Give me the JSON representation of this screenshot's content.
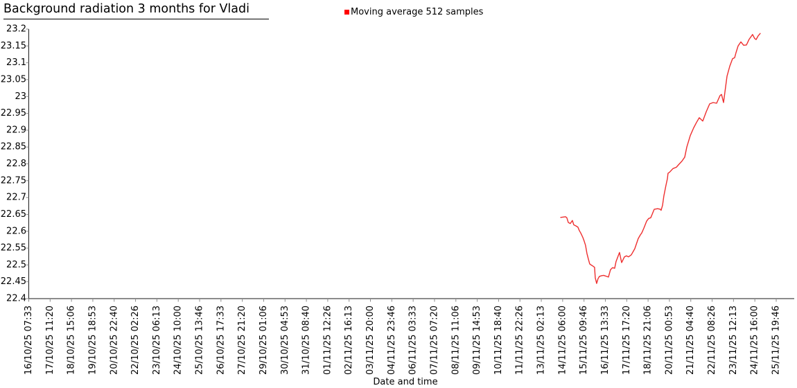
{
  "title": "Background radiation 3 months for Vladi",
  "legend": {
    "label": "Moving average 512 samples",
    "marker_color": "#ff0000"
  },
  "colors": {
    "background": "#ffffff",
    "axis_line": "#1a1a1a",
    "tick_mark": "#8a8a8a",
    "text": "#000000",
    "series_line": "#ee2e2e"
  },
  "chart_data": {
    "type": "line",
    "title": "Background radiation 3 months for Vladi",
    "xlabel": "Date and time",
    "ylabel": "",
    "ylim": [
      22.4,
      23.2
    ],
    "grid": false,
    "legend_position": "top-center",
    "yticks": [
      "22.4",
      "22.45",
      "22.5",
      "22.55",
      "22.6",
      "22.65",
      "22.7",
      "22.75",
      "22.8",
      "22.85",
      "22.9",
      "22.95",
      "23",
      "23.05",
      "23.1",
      "23.15",
      "23.2"
    ],
    "categories": [
      "16/10/25 07:33",
      "17/10/25 11:20",
      "18/10/25 15:06",
      "19/10/25 18:53",
      "20/10/25 22:40",
      "22/10/25 02:26",
      "23/10/25 06:13",
      "24/10/25 10:00",
      "25/10/25 13:46",
      "26/10/25 17:33",
      "27/10/25 21:20",
      "29/10/25 01:06",
      "30/10/25 04:53",
      "31/10/25 08:40",
      "01/11/25 12:26",
      "02/11/25 16:13",
      "03/11/25 20:00",
      "04/11/25 23:46",
      "06/11/25 03:33",
      "07/11/25 07:20",
      "08/11/25 11:06",
      "09/11/25 14:53",
      "10/11/25 18:40",
      "11/11/25 22:26",
      "13/11/25 02:13",
      "14/11/25 06:00",
      "15/11/25 09:46",
      "16/11/25 13:33",
      "17/11/25 17:20",
      "18/11/25 21:06",
      "20/11/25 00:53",
      "21/11/25 04:40",
      "22/11/25 08:26",
      "23/11/25 12:13",
      "24/11/25 16:00",
      "25/11/25 19:46"
    ],
    "x_range": {
      "start": "16/10/25 07:33",
      "end": "25/11/25 19:46"
    },
    "series": [
      {
        "name": "Moving average 512 samples",
        "color": "#ee2e2e",
        "point_format": "[fraction_along_x_axis, value]",
        "points": [
          [
            0.7116,
            22.641
          ],
          [
            0.7181,
            22.643
          ],
          [
            0.7199,
            22.64
          ],
          [
            0.7218,
            22.626
          ],
          [
            0.7245,
            22.623
          ],
          [
            0.7273,
            22.632
          ],
          [
            0.7292,
            22.619
          ],
          [
            0.7319,
            22.616
          ],
          [
            0.7347,
            22.612
          ],
          [
            0.7366,
            22.602
          ],
          [
            0.7384,
            22.595
          ],
          [
            0.7412,
            22.582
          ],
          [
            0.7431,
            22.571
          ],
          [
            0.7449,
            22.558
          ],
          [
            0.7468,
            22.534
          ],
          [
            0.7487,
            22.517
          ],
          [
            0.7505,
            22.503
          ],
          [
            0.7523,
            22.5
          ],
          [
            0.7551,
            22.496
          ],
          [
            0.757,
            22.493
          ],
          [
            0.7579,
            22.462
          ],
          [
            0.7598,
            22.445
          ],
          [
            0.7616,
            22.459
          ],
          [
            0.7635,
            22.466
          ],
          [
            0.7663,
            22.468
          ],
          [
            0.769,
            22.469
          ],
          [
            0.7718,
            22.467
          ],
          [
            0.7755,
            22.464
          ],
          [
            0.7783,
            22.486
          ],
          [
            0.7811,
            22.492
          ],
          [
            0.7839,
            22.49
          ],
          [
            0.7857,
            22.51
          ],
          [
            0.7904,
            22.537
          ],
          [
            0.7922,
            22.517
          ],
          [
            0.7932,
            22.507
          ],
          [
            0.7969,
            22.524
          ],
          [
            0.7996,
            22.527
          ],
          [
            0.8024,
            22.524
          ],
          [
            0.8061,
            22.53
          ],
          [
            0.8108,
            22.548
          ],
          [
            0.8154,
            22.578
          ],
          [
            0.8182,
            22.589
          ],
          [
            0.8201,
            22.595
          ],
          [
            0.8229,
            22.609
          ],
          [
            0.8266,
            22.63
          ],
          [
            0.8294,
            22.638
          ],
          [
            0.8321,
            22.64
          ],
          [
            0.834,
            22.65
          ],
          [
            0.8358,
            22.66
          ],
          [
            0.8368,
            22.665
          ],
          [
            0.8414,
            22.667
          ],
          [
            0.8451,
            22.665
          ],
          [
            0.846,
            22.662
          ],
          [
            0.8479,
            22.677
          ],
          [
            0.8497,
            22.705
          ],
          [
            0.8525,
            22.736
          ],
          [
            0.8544,
            22.756
          ],
          [
            0.8553,
            22.772
          ],
          [
            0.8572,
            22.775
          ],
          [
            0.8618,
            22.786
          ],
          [
            0.8664,
            22.79
          ],
          [
            0.8692,
            22.797
          ],
          [
            0.8738,
            22.808
          ],
          [
            0.8776,
            22.82
          ],
          [
            0.8804,
            22.85
          ],
          [
            0.885,
            22.884
          ],
          [
            0.8896,
            22.907
          ],
          [
            0.8934,
            22.923
          ],
          [
            0.8971,
            22.937
          ],
          [
            0.9017,
            22.927
          ],
          [
            0.9064,
            22.955
          ],
          [
            0.911,
            22.978
          ],
          [
            0.9156,
            22.982
          ],
          [
            0.9203,
            22.98
          ],
          [
            0.9249,
            23.003
          ],
          [
            0.9268,
            23.006
          ],
          [
            0.9295,
            22.982
          ],
          [
            0.9342,
            23.06
          ],
          [
            0.9379,
            23.09
          ],
          [
            0.9416,
            23.112
          ],
          [
            0.9444,
            23.115
          ],
          [
            0.9462,
            23.13
          ],
          [
            0.949,
            23.15
          ],
          [
            0.9527,
            23.162
          ],
          [
            0.9564,
            23.152
          ],
          [
            0.9601,
            23.153
          ],
          [
            0.9638,
            23.17
          ],
          [
            0.9684,
            23.184
          ],
          [
            0.9712,
            23.172
          ],
          [
            0.9731,
            23.169
          ],
          [
            0.9759,
            23.18
          ],
          [
            0.9786,
            23.187
          ]
        ]
      }
    ]
  }
}
